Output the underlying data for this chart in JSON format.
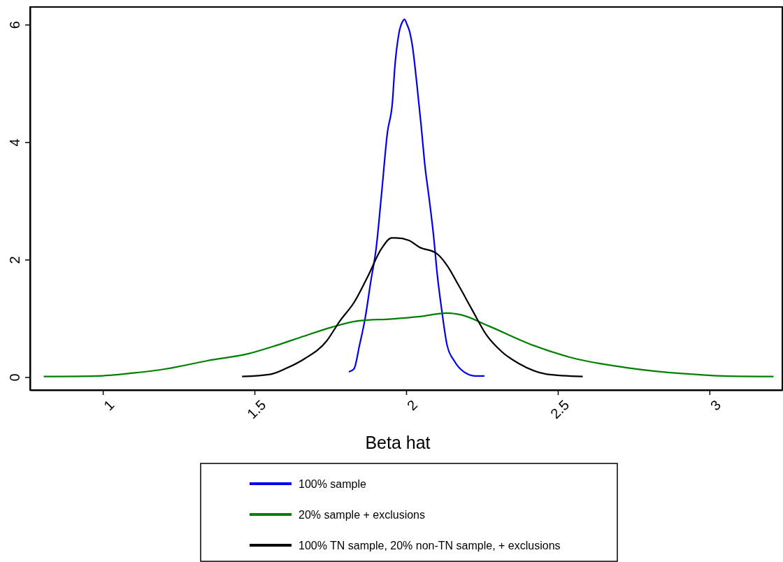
{
  "chart_data": {
    "type": "line",
    "xlabel": "Beta hat",
    "xlim": [
      0.76,
      3.24
    ],
    "ylim": [
      -0.22,
      6.3
    ],
    "xticks": [
      1,
      1.5,
      2,
      2.5,
      3
    ],
    "yticks": [
      0,
      2,
      4,
      6
    ],
    "grid": false,
    "legend": "bottom",
    "marker": "none",
    "line_style": "solid",
    "series": [
      {
        "name": "100% sample",
        "color": "#0000ee",
        "x": [
          1.811,
          1.828,
          1.846,
          1.865,
          1.883,
          1.901,
          1.919,
          1.938,
          1.955,
          1.962,
          1.976,
          1.989,
          1.994,
          2.003,
          2.012,
          2.021,
          2.035,
          2.049,
          2.062,
          2.076,
          2.09,
          2.103,
          2.117,
          2.135,
          2.158,
          2.19,
          2.227,
          2.258
        ],
        "values": [
          0.09,
          0.14,
          0.54,
          1.01,
          1.62,
          2.19,
          3.13,
          4.16,
          4.7,
          5.24,
          5.85,
          6.06,
          6.09,
          6.0,
          5.87,
          5.62,
          5.0,
          4.3,
          3.59,
          3.03,
          2.42,
          1.72,
          1.15,
          0.54,
          0.28,
          0.09,
          0.02,
          0.02
        ]
      },
      {
        "name": "20% sample + exclusions",
        "color": "#008000",
        "x": [
          0.805,
          0.98,
          1.099,
          1.208,
          1.345,
          1.481,
          1.572,
          1.664,
          1.755,
          1.846,
          1.952,
          2.044,
          2.135,
          2.181,
          2.272,
          2.409,
          2.546,
          2.728,
          2.91,
          3.047,
          3.211
        ],
        "values": [
          0.01,
          0.02,
          0.07,
          0.14,
          0.28,
          0.4,
          0.54,
          0.7,
          0.85,
          0.96,
          0.99,
          1.03,
          1.09,
          1.06,
          0.87,
          0.56,
          0.33,
          0.16,
          0.06,
          0.02,
          0.01
        ]
      },
      {
        "name": "100% TN sample, 20% non-TN sample, + exclusions",
        "color": "#000000",
        "x": [
          1.459,
          1.554,
          1.609,
          1.664,
          1.737,
          1.782,
          1.828,
          1.874,
          1.919,
          1.952,
          1.967,
          2.008,
          2.044,
          2.099,
          2.135,
          2.172,
          2.217,
          2.263,
          2.318,
          2.372,
          2.464,
          2.582
        ],
        "values": [
          0.01,
          0.05,
          0.16,
          0.31,
          0.61,
          0.96,
          1.27,
          1.72,
          2.19,
          2.37,
          2.37,
          2.33,
          2.21,
          2.11,
          1.9,
          1.57,
          1.15,
          0.73,
          0.42,
          0.23,
          0.05,
          0.01
        ]
      }
    ]
  }
}
